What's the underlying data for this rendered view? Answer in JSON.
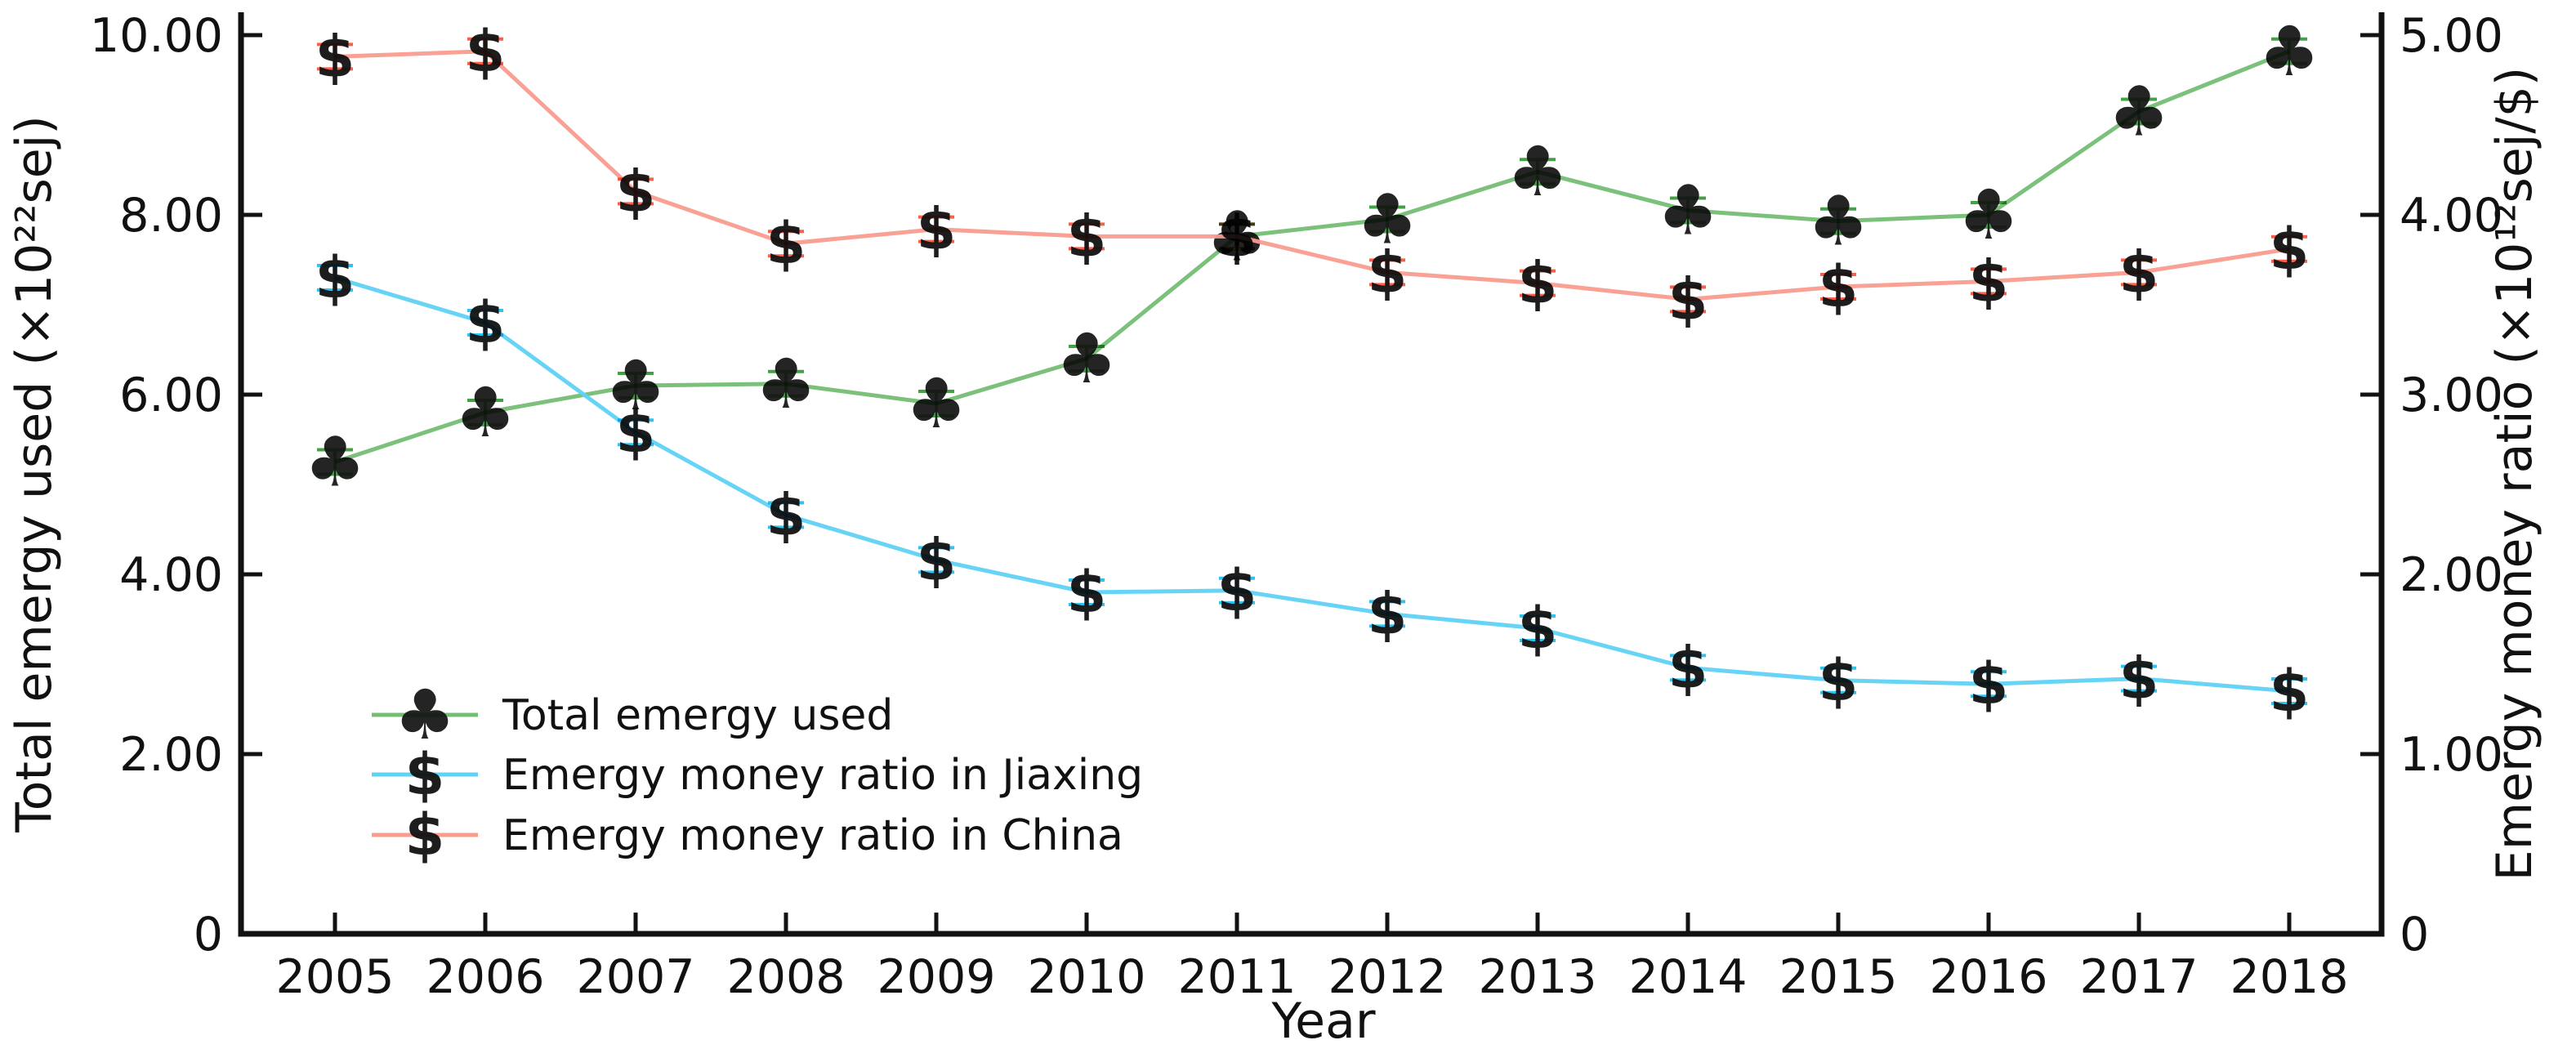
{
  "chart_data": {
    "type": "line",
    "title": "",
    "xlabel": "Year",
    "ylabel_left": "Total emergy used (×10²²sej)",
    "ylabel_right": "Emergy money ratio (×10¹²sej/$)",
    "x": [
      2005,
      2006,
      2007,
      2008,
      2009,
      2010,
      2011,
      2012,
      2013,
      2014,
      2015,
      2016,
      2017,
      2018
    ],
    "x_tick_labels": [
      "2005",
      "2006",
      "2007",
      "2008",
      "2009",
      "2010",
      "2011",
      "2012",
      "2013",
      "2014",
      "2015",
      "2016",
      "2017",
      "2018"
    ],
    "y_left_ticks": [
      {
        "v": 0,
        "label": "0"
      },
      {
        "v": 2,
        "label": "2.00"
      },
      {
        "v": 4,
        "label": "4.00"
      },
      {
        "v": 6,
        "label": "6.00"
      },
      {
        "v": 8,
        "label": "8.00"
      },
      {
        "v": 10,
        "label": "10.00"
      }
    ],
    "y_right_ticks": [
      {
        "v": 0,
        "label": "0"
      },
      {
        "v": 1,
        "label": "1.00"
      },
      {
        "v": 2,
        "label": "2.00"
      },
      {
        "v": 3,
        "label": "3.00"
      },
      {
        "v": 4,
        "label": "4.00"
      },
      {
        "v": 5,
        "label": "5.00"
      }
    ],
    "ylim_left": [
      0,
      10
    ],
    "ylim_right": [
      0,
      5
    ],
    "grid": false,
    "legend_position": "inside-lower-left",
    "series": [
      {
        "name": "Total emergy used",
        "axis": "left",
        "marker": "club",
        "marker_glyph": "♣",
        "marker_color": "#43a047",
        "line_color": "#74bd74",
        "values": [
          5.25,
          5.8,
          6.1,
          6.12,
          5.9,
          6.4,
          7.76,
          7.95,
          8.48,
          8.05,
          7.93,
          8.0,
          9.15,
          9.82
        ]
      },
      {
        "name": "Emergy money ratio in Jiaxing",
        "axis": "right",
        "marker": "dollar",
        "marker_glyph": "$",
        "marker_color": "#2ec4f1",
        "line_color": "#5fd2f5",
        "values": [
          3.65,
          3.4,
          2.79,
          2.33,
          2.08,
          1.9,
          1.91,
          1.78,
          1.7,
          1.48,
          1.41,
          1.39,
          1.42,
          1.35
        ]
      },
      {
        "name": "Emergy money ratio in China",
        "axis": "right",
        "marker": "dollar",
        "marker_glyph": "$",
        "marker_color": "#fa5f49",
        "line_color": "#f99c8e",
        "values": [
          4.88,
          4.91,
          4.13,
          3.84,
          3.92,
          3.88,
          3.88,
          3.68,
          3.62,
          3.53,
          3.6,
          3.63,
          3.68,
          3.81
        ]
      }
    ]
  }
}
